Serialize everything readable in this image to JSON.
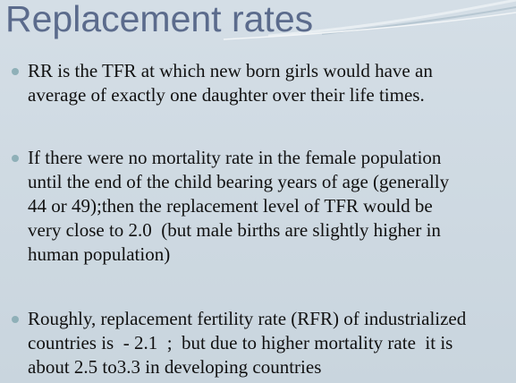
{
  "title": "Replacement rates",
  "bullets": [
    {
      "lines": [
        "RR is the TFR at which new born girls would have an",
        "average of exactly one daughter over their life times."
      ]
    },
    {
      "lines": [
        "If there were no mortality rate in the female population",
        "until the end of the child bearing years of age (generally",
        "44 or 49);then the replacement level of TFR would be",
        "very close to 2.0  (but male births are slightly higher in",
        "human population)"
      ]
    },
    {
      "lines": [
        "Roughly, replacement fertility rate (RFR) of industrialized",
        "countries is  - 2.1  ;  but due to higher mortality rate  it is",
        "about 2.5 to3.3 in developing countries"
      ]
    }
  ]
}
